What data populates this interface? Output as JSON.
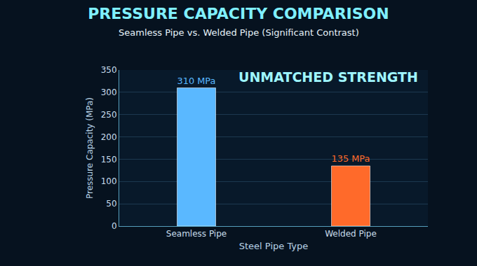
{
  "chart_data": {
    "type": "bar",
    "title": "PRESSURE CAPACITY COMPARISON",
    "subtitle": "Seamless Pipe vs. Welded Pipe (Significant Contrast)",
    "x_label": "Steel Pipe Type",
    "y_label": "Pressure Capacity (MPa)",
    "categories": [
      "Seamless Pipe",
      "Welded Pipe"
    ],
    "values": [
      310,
      135
    ],
    "value_labels": [
      "310 MPa",
      "135 MPa"
    ],
    "data_labels": true,
    "colors": [
      "#5ab8ff",
      "#ff6a2a"
    ],
    "ylim": [
      0,
      350
    ],
    "yticks": [
      0,
      50,
      100,
      150,
      200,
      250,
      300,
      350
    ],
    "grid": true,
    "annotations": [
      {
        "text": "UNMATCHED STRENGTH",
        "x": "Seamless Pipe",
        "y": 310
      }
    ]
  }
}
